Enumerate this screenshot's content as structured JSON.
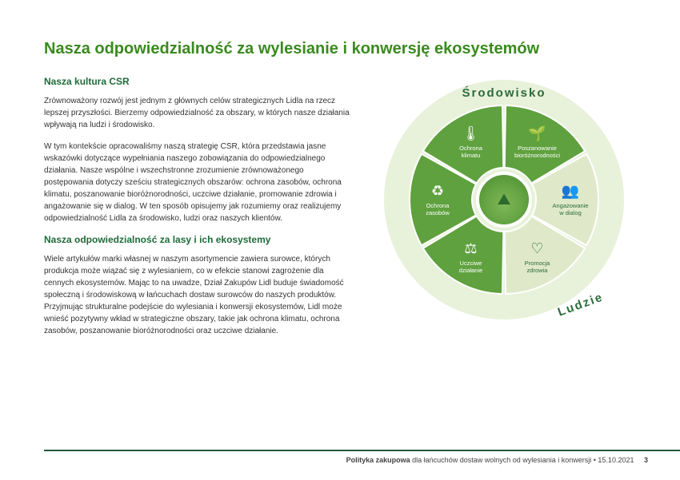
{
  "title": "Nasza odpowiedzialność za wylesianie i konwersję ekosystemów",
  "section1": {
    "heading": "Nasza kultura CSR",
    "p1": "Zrównoważony rozwój jest jednym z głównych celów strategicznych Lidla na rzecz lepszej przyszłości. Bierzemy odpowiedzialność za obszary, w których nasze działania wpływają na ludzi i środowisko.",
    "p2": "W tym kontekście opracowaliśmy naszą strategię CSR, która przedstawia jasne wskazówki dotyczące wypełniania naszego zobowiązania do odpowiedzialnego działania. Nasze wspólne i wszechstronne zrozumienie zrównoważonego postępowania dotyczy sześciu strategicznych obszarów: ochrona zasobów, ochrona klimatu, poszanowanie bioróżnorodności, uczciwe działanie, promowanie zdrowia i angażowanie się w dialog. W ten sposób opisujemy jak rozumiemy oraz realizujemy odpowiedzialność Lidla za środowisko, ludzi oraz naszych klientów."
  },
  "section2": {
    "heading": "Nasza odpowiedzialność za lasy i ich ekosystemy",
    "p1": "Wiele artykułów marki własnej w naszym asortymencie zawiera surowce, których produkcja może wiązać się z wylesianiem, co w efekcie stanowi zagrożenie dla cennych ekosystemów. Mając to na uwadze, Dział Zakupów Lidl buduje świadomość społeczną i środowiskową w łańcuchach dostaw surowców do naszych produktów. Przyjmując strukturalne podejście do wylesiania i konwersji ekosystemów, Lidl może wnieść pozytywny wkład w strategiczne obszary, takie jak ochrona klimatu, ochrona zasobów, poszanowanie bioróżnorodności oraz uczciwe działanie."
  },
  "wheel": {
    "outer_bg": "#e8f1da",
    "arc_top": "Środowisko",
    "arc_bottom": "Ludzie",
    "dark_fill": "#5fa13e",
    "light_fill": "#dfe9c9",
    "segments": [
      {
        "label": "Ochrona\nklimatu",
        "icon": "🌡",
        "tone": "dark"
      },
      {
        "label": "Poszanowanie\nbioróżnorodności",
        "icon": "🌱",
        "tone": "dark"
      },
      {
        "label": "Angażowanie\nw dialog",
        "icon": "👥",
        "tone": "light"
      },
      {
        "label": "Promocja\nzdrowia",
        "icon": "♡",
        "tone": "light"
      },
      {
        "label": "Uczciwe\ndziałanie",
        "icon": "⚖",
        "tone": "dark"
      },
      {
        "label": "Ochrona\nzasobów",
        "icon": "♻",
        "tone": "dark"
      }
    ]
  },
  "footer": {
    "bold": "Polityka zakupowa",
    "rest": " dla łańcuchów dostaw wolnych od wylesiania i konwersji • 15.10.2021",
    "page": "3"
  }
}
